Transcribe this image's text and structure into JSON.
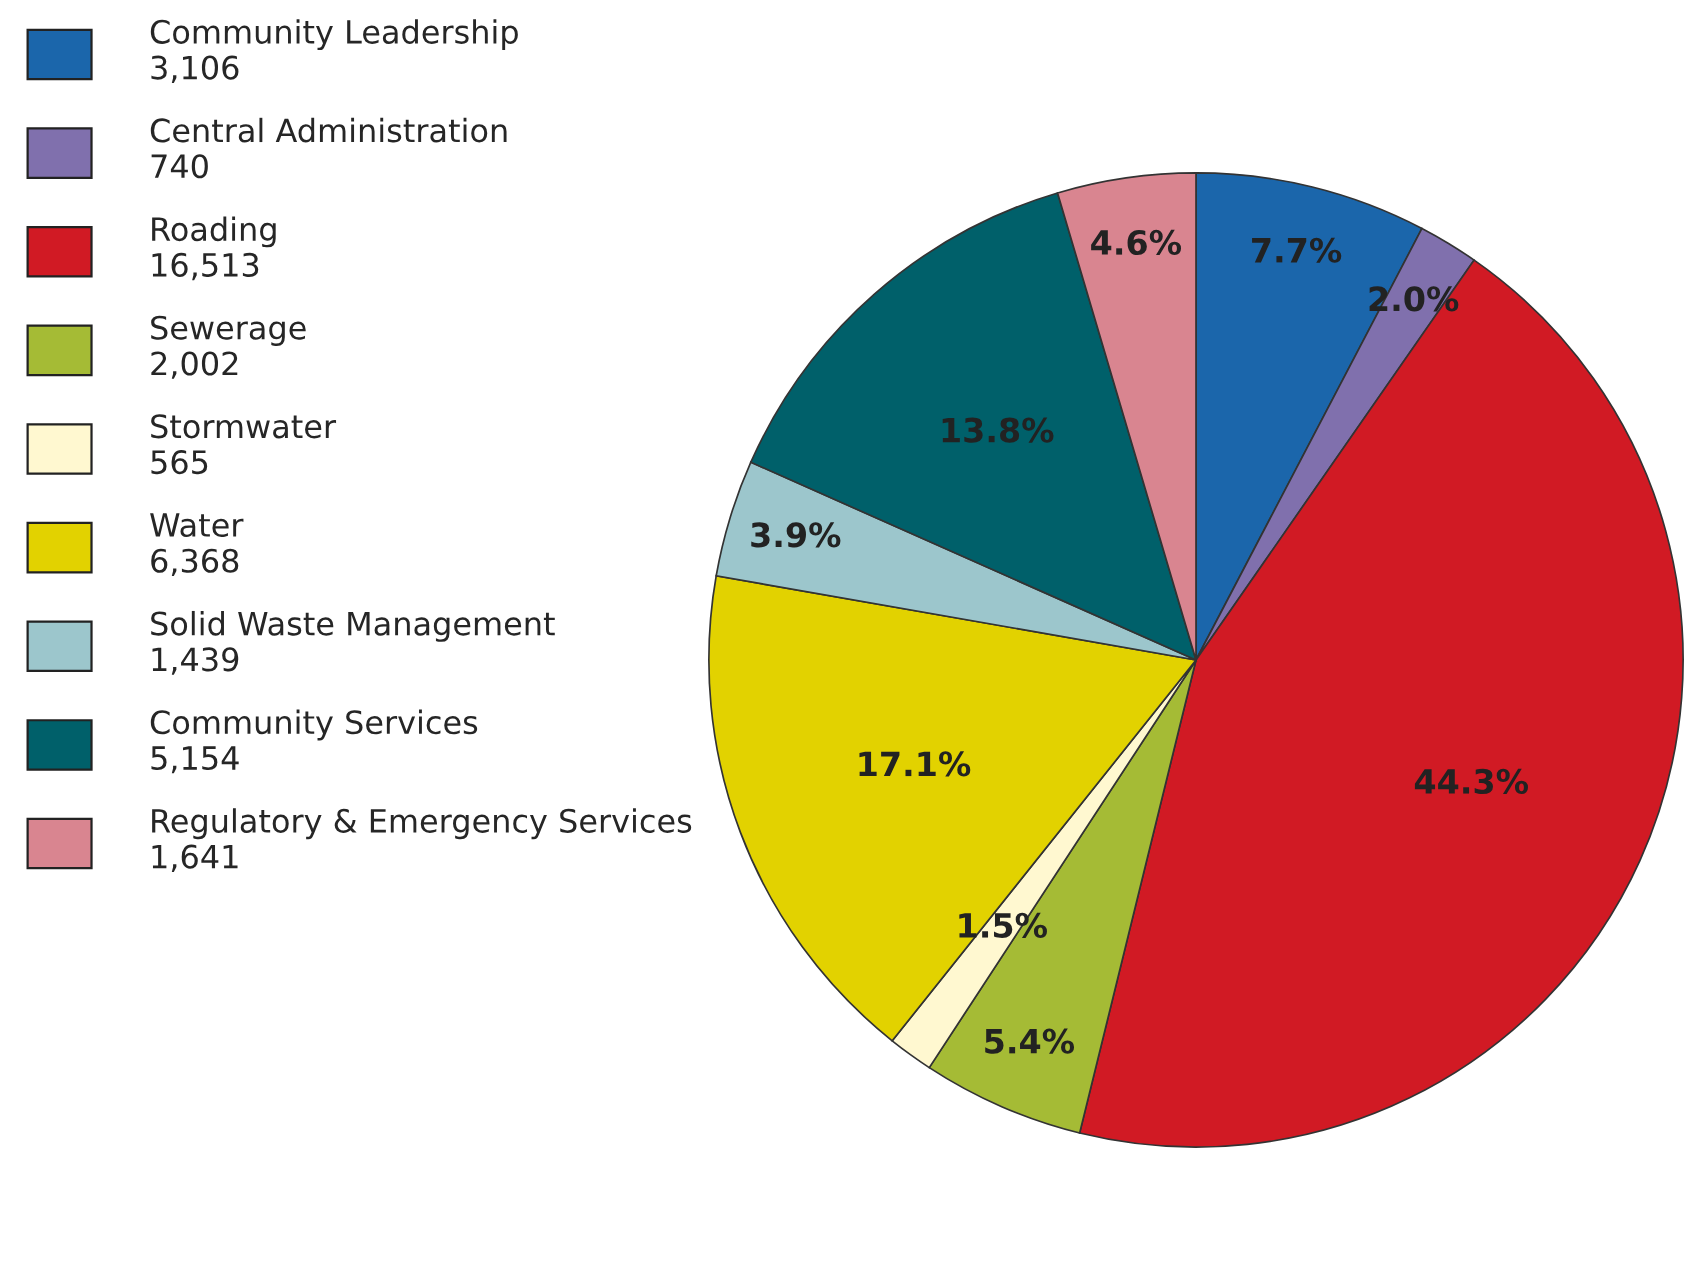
{
  "chart_data": {
    "type": "pie",
    "categories": [
      "Community Leadership\n3,106",
      "Central Administration\n740",
      "Roading\n16,513",
      "Sewerage\n2,002",
      "Stormwater\n565",
      "Water\n6,368",
      "Solid Waste Management\n1,439",
      "Community Services\n5,154",
      "Regulatory & Emergency Services\n1,641"
    ],
    "values": [
      7.7,
      2.0,
      44.3,
      5.4,
      1.5,
      17.1,
      3.9,
      13.8,
      4.6
    ],
    "value_labels": [
      "7.7%",
      "2.0%",
      "44.3%",
      "5.4%",
      "1.5%",
      "17.1%",
      "3.9%",
      "13.8%",
      "4.6%"
    ],
    "colors": [
      "#1b66ab",
      "#8070ad",
      "#d11a24",
      "#a5bb35",
      "#fff8d0",
      "#e2d200",
      "#9cc6cc",
      "#00606a",
      "#d98590"
    ],
    "legend": "left"
  }
}
